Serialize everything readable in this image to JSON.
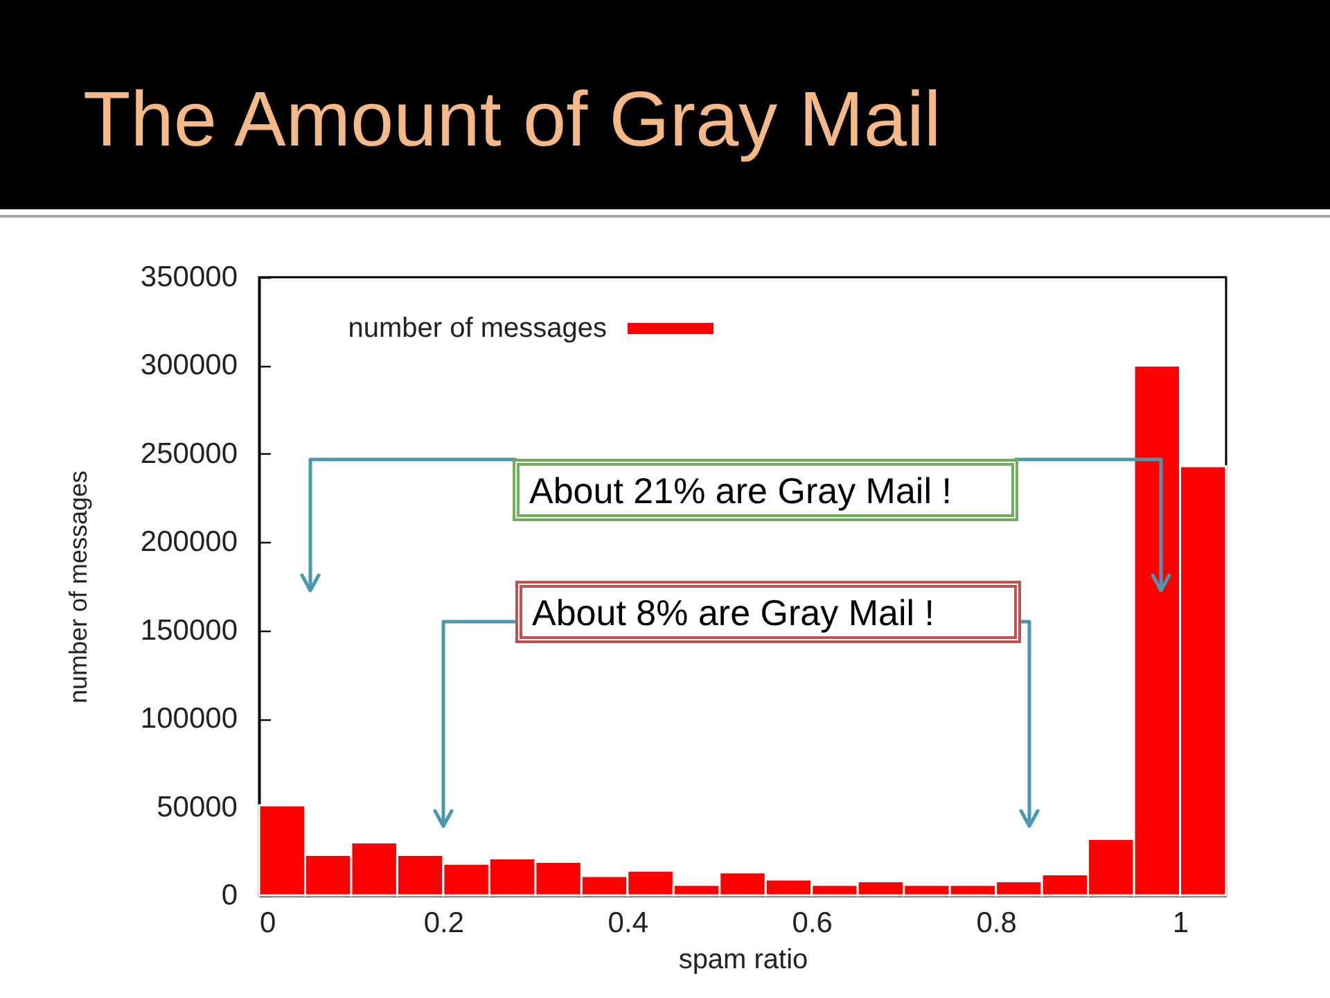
{
  "chart_data": {
    "type": "histogram",
    "title": "The Amount of Gray Mail",
    "xlabel": "spam ratio",
    "ylabel": "number of messages",
    "bins": [
      0,
      0.05,
      0.1,
      0.15,
      0.2,
      0.25,
      0.3,
      0.35,
      0.4,
      0.45,
      0.5,
      0.55,
      0.6,
      0.65,
      0.7,
      0.75,
      0.8,
      0.85,
      0.9,
      0.95,
      1,
      1.05
    ],
    "series": [
      {
        "name": "number of messages",
        "color": "#ff0000",
        "values": [
          51000,
          23000,
          30000,
          23000,
          18000,
          21000,
          19000,
          11000,
          14000,
          6000,
          13000,
          9000,
          6000,
          8000,
          6000,
          6000,
          8000,
          12000,
          32000,
          300000,
          243000
        ]
      }
    ],
    "xlim": [
      0,
      1.05
    ],
    "xticks": [
      0,
      0.2,
      0.4,
      0.6,
      0.8,
      1
    ],
    "ylim": [
      0,
      350000
    ],
    "yticks": [
      0,
      50000,
      100000,
      150000,
      200000,
      250000,
      300000,
      350000
    ],
    "grid": false,
    "legend": "top left",
    "annotations": [
      "About 21% are Gray Mail !",
      "About 8% are Gray Mail !"
    ]
  }
}
